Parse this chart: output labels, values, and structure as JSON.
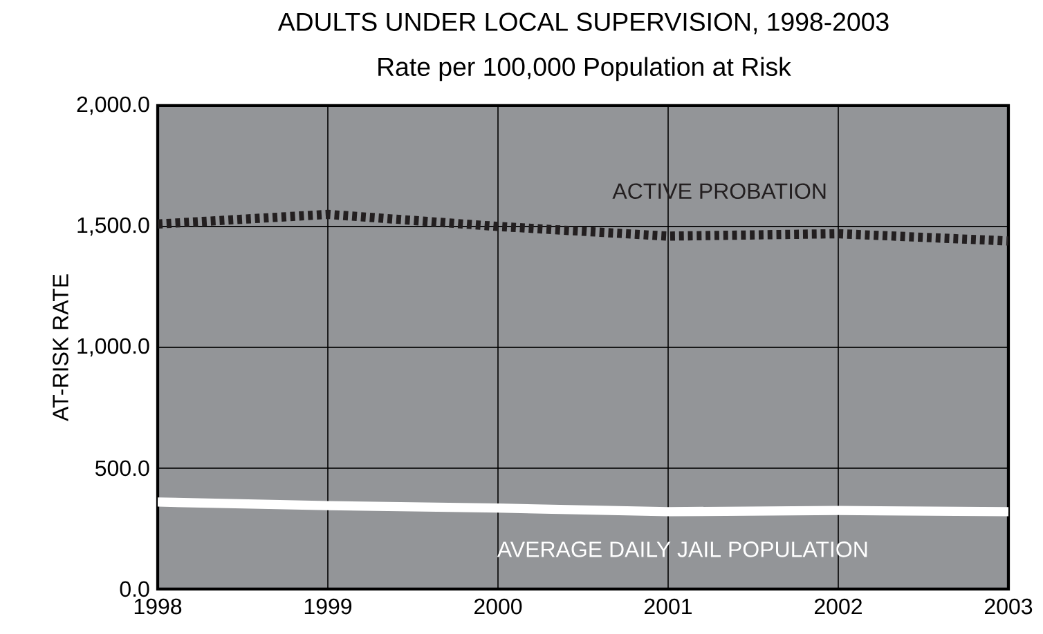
{
  "chart_data": {
    "type": "line",
    "title": "ADULTS UNDER LOCAL SUPERVISION, 1998-2003",
    "subtitle": "Rate per 100,000 Population at Risk",
    "ylabel": "AT-RISK RATE",
    "x": [
      1998,
      1999,
      2000,
      2001,
      2002,
      2003
    ],
    "series": [
      {
        "name": "ACTIVE PROBATION",
        "color": "#231f20",
        "line_style": "dotted",
        "values": [
          1510,
          1550,
          1500,
          1460,
          1470,
          1440
        ]
      },
      {
        "name": "AVERAGE DAILY JAIL POPULATION",
        "color": "#ffffff",
        "line_style": "solid",
        "values": [
          360,
          345,
          335,
          320,
          325,
          320
        ]
      }
    ],
    "xlim": [
      1998,
      2003
    ],
    "ylim": [
      0,
      2000
    ],
    "xticks": [
      1998,
      1999,
      2000,
      2001,
      2002,
      2003
    ],
    "yticks": [
      {
        "value": 0,
        "label": "0.0"
      },
      {
        "value": 500,
        "label": "500.0"
      },
      {
        "value": 1000,
        "label": "1,000.0"
      },
      {
        "value": 1500,
        "label": "1,500.0"
      },
      {
        "value": 2000,
        "label": "2,000.0"
      }
    ],
    "grid": true,
    "marker": "none"
  }
}
